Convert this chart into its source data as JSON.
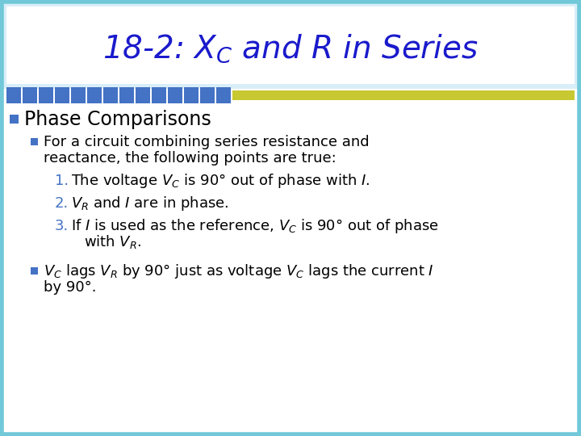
{
  "title_text": "18-2: $X_C$ and $R$ in Series",
  "title_color": "#1a1acc",
  "title_fontsize": 28,
  "bg_color": "#ffffff",
  "header_bg_color": "#ddf0f8",
  "border_color": "#70c8d8",
  "olive_bar_color": "#c8c832",
  "blue_square_color": "#4472c4",
  "bullet_color": "#4472c4",
  "bullet1_text": "Phase Comparisons",
  "bullet1_fontsize": 17,
  "body_fontsize": 13,
  "number_color": "#4472c4",
  "text_color": "#000000",
  "sub_bullet1_line1": "For a circuit combining series resistance and",
  "sub_bullet1_line2": "reactance, the following points are true:",
  "item1": "The voltage $V_C$ is 90° out of phase with $I$.",
  "item2": "$V_R$ and $I$ are in phase.",
  "item3_line1": "If $I$ is used as the reference, $V_C$ is 90° out of phase",
  "item3_line2": "with $V_R$.",
  "sub_bullet2_line1": "$V_C$ lags $V_R$ by 90° just as voltage $V_C$ lags the current $I$",
  "sub_bullet2_line2": "by 90°."
}
